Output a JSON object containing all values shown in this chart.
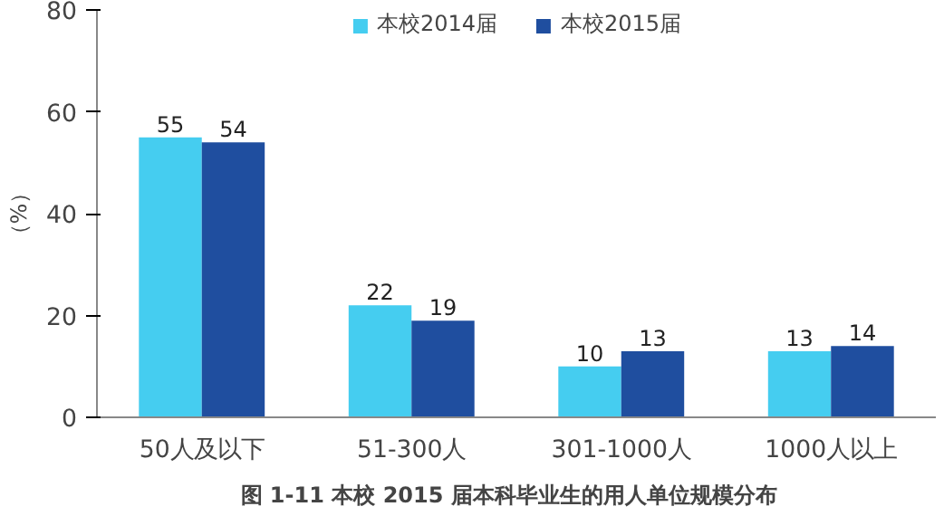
{
  "chart_data": {
    "type": "bar",
    "title": "图 1-11   本校 2015 届本科毕业生的用人单位规模分布",
    "ylabel": "（%）",
    "categories": [
      "50人及以下",
      "51-300人",
      "301-1000人",
      "1000人以上"
    ],
    "series": [
      {
        "name": "本校2014届",
        "color": "#45cdf0",
        "values": [
          55,
          22,
          10,
          13
        ]
      },
      {
        "name": "本校2015届",
        "color": "#1f4e9f",
        "values": [
          54,
          19,
          13,
          14
        ]
      }
    ],
    "ylim": [
      0,
      80
    ],
    "yticks": [
      0,
      20,
      40,
      60,
      80
    ],
    "grid": false,
    "legend": "top",
    "data_labels": true
  }
}
